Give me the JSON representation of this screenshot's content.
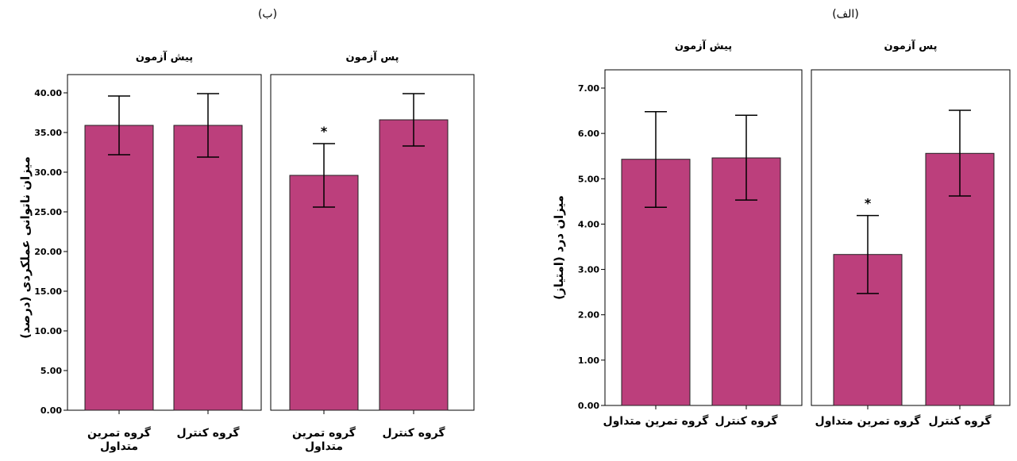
{
  "chart_data": [
    {
      "type": "bar",
      "figure_label": "(ب)",
      "ylabel": "میزان ناتوانی عملکردی (درصد)",
      "ylim": [
        0,
        40
      ],
      "yticks": [
        "0.00",
        "5.00",
        "10.00",
        "15.00",
        "20.00",
        "25.00",
        "30.00",
        "35.00",
        "40.00"
      ],
      "tick_values": [
        0,
        5,
        10,
        15,
        20,
        25,
        30,
        35,
        40
      ],
      "bar_color": "#bc3f7c",
      "panels": [
        {
          "title": "پیش آزمون",
          "categories": [
            {
              "line1": "گروه تمرین",
              "line2": "متداول"
            },
            {
              "line1": "گروه کنترل",
              "line2": ""
            }
          ],
          "values": [
            35.9,
            35.9
          ],
          "error_low": [
            32.2,
            31.9
          ],
          "error_high": [
            39.6,
            39.9
          ],
          "stars": [
            "",
            ""
          ]
        },
        {
          "title": "پس آزمون",
          "categories": [
            {
              "line1": "گروه تمرین",
              "line2": "متداول"
            },
            {
              "line1": "گروه کنترل",
              "line2": ""
            }
          ],
          "values": [
            29.6,
            36.6
          ],
          "error_low": [
            25.6,
            33.3
          ],
          "error_high": [
            33.6,
            39.9
          ],
          "stars": [
            "*",
            ""
          ]
        }
      ]
    },
    {
      "type": "bar",
      "figure_label": "(الف)",
      "ylabel": "میزان درد (امتیاز)",
      "ylim": [
        0,
        7
      ],
      "yticks": [
        "0.00",
        "1.00",
        "2.00",
        "3.00",
        "4.00",
        "5.00",
        "6.00",
        "7.00"
      ],
      "tick_values": [
        0,
        1,
        2,
        3,
        4,
        5,
        6,
        7
      ],
      "bar_color": "#bc3f7c",
      "panels": [
        {
          "title": "پیش آزمون",
          "categories": [
            {
              "line1": "گروه تمرین متداول",
              "line2": ""
            },
            {
              "line1": "گروه کنترل",
              "line2": ""
            }
          ],
          "values": [
            5.43,
            5.46
          ],
          "error_low": [
            4.37,
            4.53
          ],
          "error_high": [
            6.48,
            6.4
          ],
          "stars": [
            "",
            ""
          ]
        },
        {
          "title": "پس آزمون",
          "categories": [
            {
              "line1": "گروه تمرین متداول",
              "line2": ""
            },
            {
              "line1": "گروه کنترل",
              "line2": ""
            }
          ],
          "values": [
            3.33,
            5.56
          ],
          "error_low": [
            2.47,
            4.62
          ],
          "error_high": [
            4.19,
            6.51
          ],
          "stars": [
            "*",
            ""
          ]
        }
      ]
    }
  ]
}
